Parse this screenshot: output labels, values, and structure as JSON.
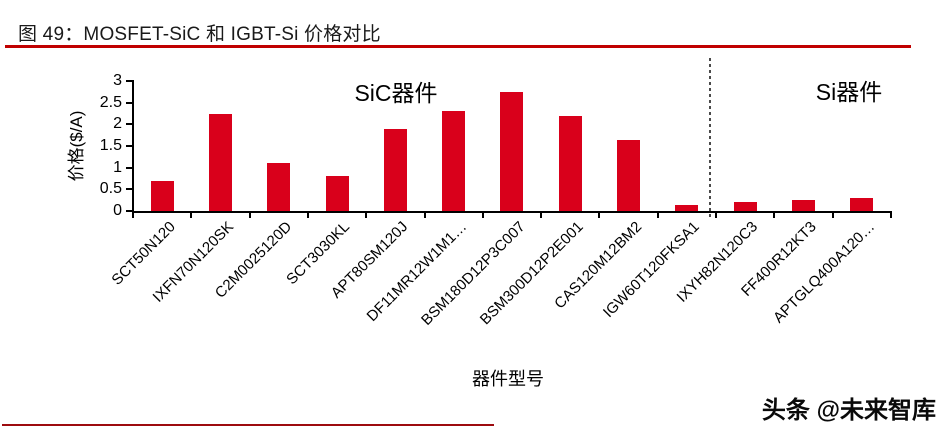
{
  "page": {
    "title": "图 49：MOSFET-SiC 和 IGBT-Si 价格对比",
    "watermark": "头条 @未来智库"
  },
  "chart_data": {
    "type": "bar",
    "title": "",
    "categories": [
      "SCT50N120",
      "IXFN70N120SK",
      "C2M0025120D",
      "SCT3030KL",
      "APT80SM120J",
      "DF11MR12W1M1…",
      "BSM180D12P3C007",
      "BSM300D12P2E001",
      "CAS120M12BM2",
      "IGW60T120FKSA1",
      "IXYH82N120C3",
      "FF400R12KT3",
      "APTGLQ400A120…"
    ],
    "values": [
      0.7,
      2.25,
      1.1,
      0.8,
      1.9,
      2.3,
      2.75,
      2.2,
      1.65,
      0.15,
      0.2,
      0.25,
      0.3
    ],
    "xlabel": "器件型号",
    "ylabel": "价格($/A)",
    "ylim": [
      0,
      3
    ],
    "ytick_labels": [
      "0",
      "0.5",
      "1",
      "1.5",
      "2",
      "2.5",
      "3"
    ],
    "grid": false,
    "legend": "none",
    "group_annotations": [
      {
        "label": "SiC器件",
        "side": "left"
      },
      {
        "label": "Si器件",
        "side": "right"
      }
    ],
    "separator": {
      "style": "dashed-vertical",
      "after_category_index": 9
    }
  },
  "colors": {
    "bar": "#d9001b",
    "header_rule": "#c00000",
    "footer_rule": "#9d0b0f",
    "axis": "#000000",
    "separator_line": "#4a4a4a"
  }
}
